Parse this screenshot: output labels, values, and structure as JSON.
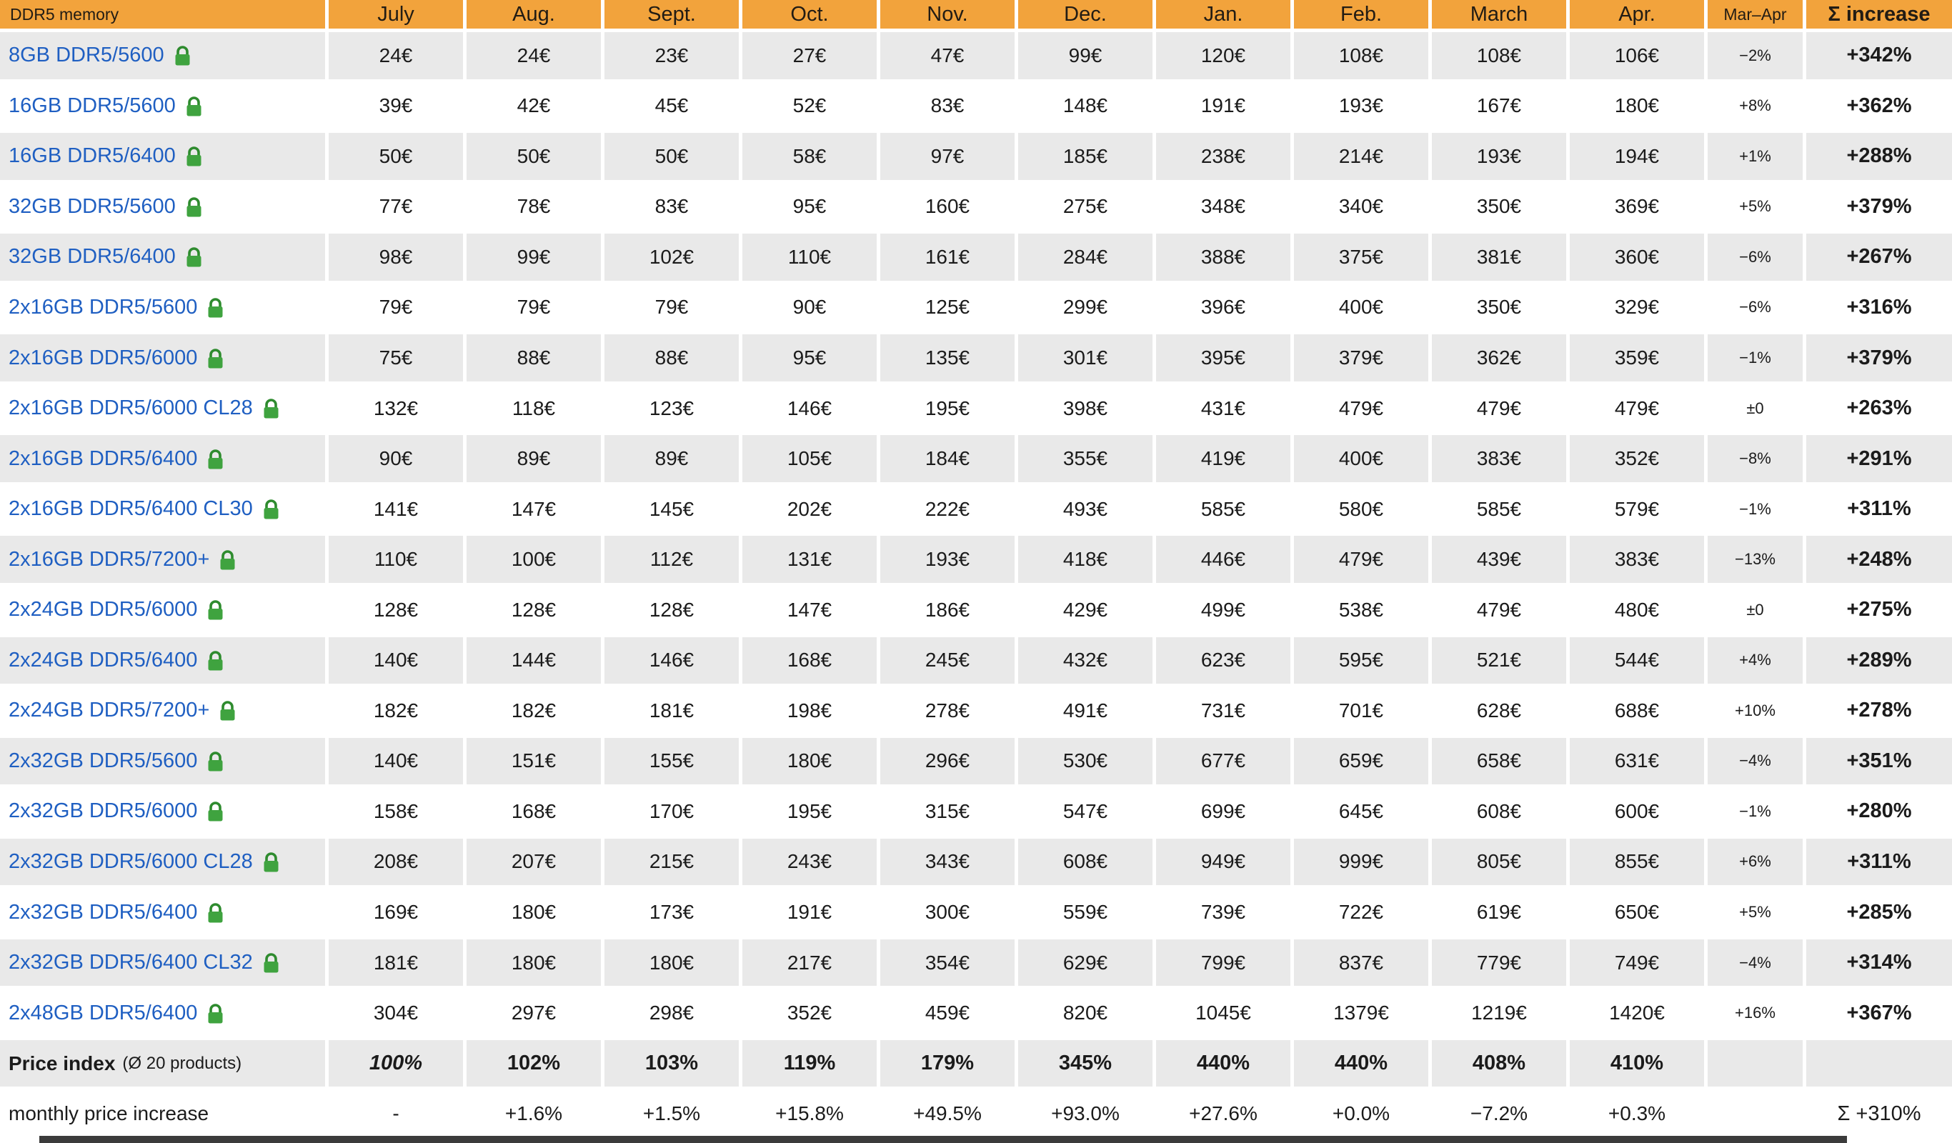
{
  "chart_data": {
    "type": "table",
    "corner_label": "DDR5 memory",
    "month_headers": [
      "July",
      "Aug.",
      "Sept.",
      "Oct.",
      "Nov.",
      "Dec.",
      "Jan.",
      "Feb.",
      "March",
      "Apr."
    ],
    "change_header": "Mar–Apr",
    "total_header": "Σ increase",
    "rows": [
      {
        "name": "8GB DDR5/5600",
        "prices": [
          "24€",
          "24€",
          "23€",
          "27€",
          "47€",
          "99€",
          "120€",
          "108€",
          "108€",
          "106€"
        ],
        "change": "−2%",
        "total": "+342%"
      },
      {
        "name": "16GB DDR5/5600",
        "prices": [
          "39€",
          "42€",
          "45€",
          "52€",
          "83€",
          "148€",
          "191€",
          "193€",
          "167€",
          "180€"
        ],
        "change": "+8%",
        "total": "+362%"
      },
      {
        "name": "16GB DDR5/6400",
        "prices": [
          "50€",
          "50€",
          "50€",
          "58€",
          "97€",
          "185€",
          "238€",
          "214€",
          "193€",
          "194€"
        ],
        "change": "+1%",
        "total": "+288%"
      },
      {
        "name": "32GB DDR5/5600",
        "prices": [
          "77€",
          "78€",
          "83€",
          "95€",
          "160€",
          "275€",
          "348€",
          "340€",
          "350€",
          "369€"
        ],
        "change": "+5%",
        "total": "+379%"
      },
      {
        "name": "32GB DDR5/6400",
        "prices": [
          "98€",
          "99€",
          "102€",
          "110€",
          "161€",
          "284€",
          "388€",
          "375€",
          "381€",
          "360€"
        ],
        "change": "−6%",
        "total": "+267%"
      },
      {
        "name": "2x16GB DDR5/5600",
        "prices": [
          "79€",
          "79€",
          "79€",
          "90€",
          "125€",
          "299€",
          "396€",
          "400€",
          "350€",
          "329€"
        ],
        "change": "−6%",
        "total": "+316%"
      },
      {
        "name": "2x16GB DDR5/6000",
        "prices": [
          "75€",
          "88€",
          "88€",
          "95€",
          "135€",
          "301€",
          "395€",
          "379€",
          "362€",
          "359€"
        ],
        "change": "−1%",
        "total": "+379%"
      },
      {
        "name": "2x16GB DDR5/6000 CL28",
        "prices": [
          "132€",
          "118€",
          "123€",
          "146€",
          "195€",
          "398€",
          "431€",
          "479€",
          "479€",
          "479€"
        ],
        "change": "±0",
        "total": "+263%"
      },
      {
        "name": "2x16GB DDR5/6400",
        "prices": [
          "90€",
          "89€",
          "89€",
          "105€",
          "184€",
          "355€",
          "419€",
          "400€",
          "383€",
          "352€"
        ],
        "change": "−8%",
        "total": "+291%"
      },
      {
        "name": "2x16GB DDR5/6400 CL30",
        "prices": [
          "141€",
          "147€",
          "145€",
          "202€",
          "222€",
          "493€",
          "585€",
          "580€",
          "585€",
          "579€"
        ],
        "change": "−1%",
        "total": "+311%"
      },
      {
        "name": "2x16GB DDR5/7200+",
        "prices": [
          "110€",
          "100€",
          "112€",
          "131€",
          "193€",
          "418€",
          "446€",
          "479€",
          "439€",
          "383€"
        ],
        "change": "−13%",
        "total": "+248%"
      },
      {
        "name": "2x24GB DDR5/6000",
        "prices": [
          "128€",
          "128€",
          "128€",
          "147€",
          "186€",
          "429€",
          "499€",
          "538€",
          "479€",
          "480€"
        ],
        "change": "±0",
        "total": "+275%"
      },
      {
        "name": "2x24GB DDR5/6400",
        "prices": [
          "140€",
          "144€",
          "146€",
          "168€",
          "245€",
          "432€",
          "623€",
          "595€",
          "521€",
          "544€"
        ],
        "change": "+4%",
        "total": "+289%"
      },
      {
        "name": "2x24GB DDR5/7200+",
        "prices": [
          "182€",
          "182€",
          "181€",
          "198€",
          "278€",
          "491€",
          "731€",
          "701€",
          "628€",
          "688€"
        ],
        "change": "+10%",
        "total": "+278%"
      },
      {
        "name": "2x32GB DDR5/5600",
        "prices": [
          "140€",
          "151€",
          "155€",
          "180€",
          "296€",
          "530€",
          "677€",
          "659€",
          "658€",
          "631€"
        ],
        "change": "−4%",
        "total": "+351%"
      },
      {
        "name": "2x32GB DDR5/6000",
        "prices": [
          "158€",
          "168€",
          "170€",
          "195€",
          "315€",
          "547€",
          "699€",
          "645€",
          "608€",
          "600€"
        ],
        "change": "−1%",
        "total": "+280%"
      },
      {
        "name": "2x32GB DDR5/6000 CL28",
        "prices": [
          "208€",
          "207€",
          "215€",
          "243€",
          "343€",
          "608€",
          "949€",
          "999€",
          "805€",
          "855€"
        ],
        "change": "+6%",
        "total": "+311%"
      },
      {
        "name": "2x32GB DDR5/6400",
        "prices": [
          "169€",
          "180€",
          "173€",
          "191€",
          "300€",
          "559€",
          "739€",
          "722€",
          "619€",
          "650€"
        ],
        "change": "+5%",
        "total": "+285%"
      },
      {
        "name": "2x32GB DDR5/6400 CL32",
        "prices": [
          "181€",
          "180€",
          "180€",
          "217€",
          "354€",
          "629€",
          "799€",
          "837€",
          "779€",
          "749€"
        ],
        "change": "−4%",
        "total": "+314%"
      },
      {
        "name": "2x48GB DDR5/6400",
        "prices": [
          "304€",
          "297€",
          "298€",
          "352€",
          "459€",
          "820€",
          "1045€",
          "1379€",
          "1219€",
          "1420€"
        ],
        "change": "+16%",
        "total": "+367%"
      }
    ],
    "price_index": {
      "label": "Price index",
      "note": "(Ø 20 products)",
      "values": [
        "100%",
        "102%",
        "103%",
        "119%",
        "179%",
        "345%",
        "440%",
        "440%",
        "408%",
        "410%"
      ]
    },
    "monthly_increase": {
      "label": "monthly price increase",
      "values": [
        "-",
        "+1.6%",
        "+1.5%",
        "+15.8%",
        "+49.5%",
        "+93.0%",
        "+27.6%",
        "+0.0%",
        "−7.2%",
        "+0.3%"
      ],
      "total": "Σ +310%"
    }
  },
  "colors": {
    "header_bg": "#F2A33C",
    "row_alt_bg": "#e9e9e9",
    "link_blue": "#1f5fc2",
    "lock_green": "#3fa33f",
    "text": "#1b1b1b"
  },
  "icons": {
    "lock": "lock-icon"
  }
}
